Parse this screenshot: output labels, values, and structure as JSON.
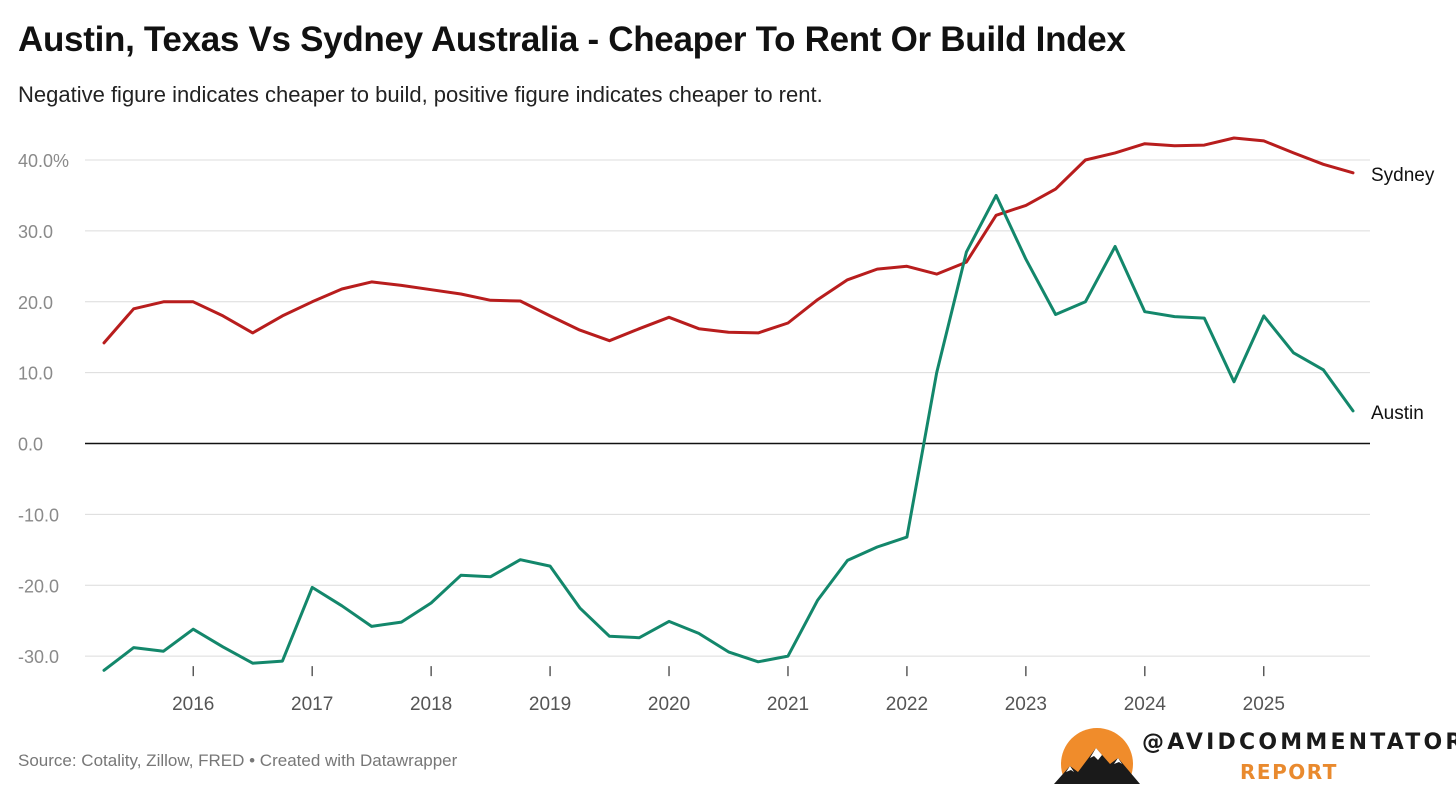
{
  "header": {
    "title": "Austin, Texas Vs Sydney Australia - Cheaper To Rent Or Build Index",
    "subtitle": "Negative figure indicates cheaper to build, positive figure indicates cheaper to rent."
  },
  "footer": {
    "source": "Source: Cotality, Zillow, FRED • Created with Datawrapper"
  },
  "brand": {
    "handle": "@AVIDCOMMENTATOR",
    "report": "REPORT",
    "accent_color": "#e98a2e"
  },
  "chart_data": {
    "type": "line",
    "title": "Austin, Texas Vs Sydney Australia - Cheaper To Rent Or Build Index",
    "xlabel": "",
    "ylabel": "",
    "ylim": [
      -32,
      42
    ],
    "xlim": [
      2015.25,
      2025.75
    ],
    "y_ticks": [
      40,
      30,
      20,
      10,
      0,
      -10,
      -20,
      -30
    ],
    "y_tick_labels": [
      "40.0%",
      "30.0",
      "20.0",
      "10.0",
      "0.0",
      "-10.0",
      "-20.0",
      "-30.0"
    ],
    "x_ticks": [
      2016,
      2017,
      2018,
      2019,
      2020,
      2021,
      2022,
      2023,
      2024,
      2025
    ],
    "x_tick_labels": [
      "2016",
      "2017",
      "2018",
      "2019",
      "2020",
      "2021",
      "2022",
      "2023",
      "2024",
      "2025"
    ],
    "grid": true,
    "zero_line": true,
    "x": [
      2015.25,
      2015.5,
      2015.75,
      2016.0,
      2016.25,
      2016.5,
      2016.75,
      2017.0,
      2017.25,
      2017.5,
      2017.75,
      2018.0,
      2018.25,
      2018.5,
      2018.75,
      2019.0,
      2019.25,
      2019.5,
      2019.75,
      2020.0,
      2020.25,
      2020.5,
      2020.75,
      2021.0,
      2021.25,
      2021.5,
      2021.75,
      2022.0,
      2022.25,
      2022.5,
      2022.75,
      2023.0,
      2023.25,
      2023.5,
      2023.75,
      2024.0,
      2024.25,
      2024.5,
      2024.75,
      2025.0,
      2025.25,
      2025.5,
      2025.75
    ],
    "series": [
      {
        "name": "Sydney",
        "color": "#b81d1d",
        "values": [
          14.2,
          19.0,
          20.0,
          20.0,
          18.0,
          15.6,
          18.0,
          20.0,
          21.8,
          22.8,
          22.3,
          21.7,
          21.1,
          20.2,
          20.1,
          18.0,
          16.0,
          14.5,
          16.2,
          17.8,
          16.2,
          15.7,
          15.6,
          17.0,
          20.3,
          23.1,
          24.6,
          25.0,
          23.9,
          25.6,
          32.2,
          33.6,
          35.9,
          40.0,
          41.0,
          42.3,
          42.0,
          42.1,
          43.1,
          42.7,
          41.0,
          39.4,
          38.2
        ]
      },
      {
        "name": "Austin",
        "color": "#13876b",
        "values": [
          -32.0,
          -28.8,
          -29.3,
          -26.2,
          -28.7,
          -31.0,
          -30.7,
          -20.3,
          -22.9,
          -25.8,
          -25.2,
          -22.5,
          -18.6,
          -18.8,
          -16.4,
          -17.3,
          -23.2,
          -27.2,
          -27.4,
          -25.1,
          -26.8,
          -29.4,
          -30.8,
          -30.0,
          -22.1,
          -16.5,
          -14.6,
          -13.2,
          10.0,
          27.0,
          35.0,
          26.0,
          18.2,
          20.0,
          27.8,
          18.6,
          17.9,
          17.7,
          8.7,
          18.0,
          12.8,
          10.4,
          4.6
        ]
      }
    ]
  }
}
